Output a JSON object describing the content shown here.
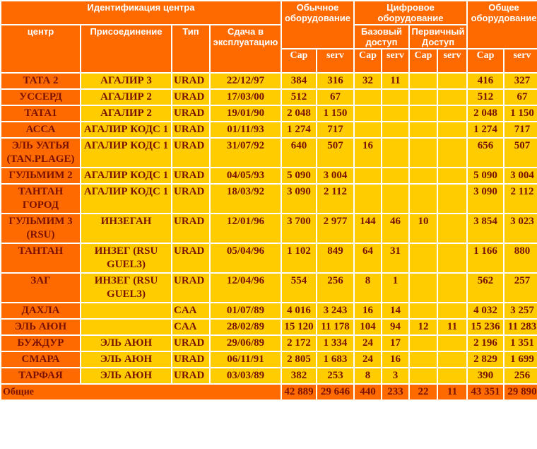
{
  "headers": {
    "id_group": "Идентификация центра",
    "col_center": "центр",
    "col_connection": "Присоединение",
    "col_type": "Тип",
    "col_commissioning": "Сдача в эксплуатацию",
    "ordinary_equipment": "Обычное оборудование",
    "digital_equipment": "Цифровое оборудование",
    "basic_access": "Базовый доступ",
    "primary_access": "Первичный Доступ",
    "total_equipment": "Общее оборудование",
    "cap": "Cap",
    "serv": "serv"
  },
  "rows": [
    {
      "center": "ТАТА 2",
      "connection": "АГАЛИР 3",
      "type": "URAD",
      "date": "22/12/97",
      "ord_cap": "384",
      "ord_serv": "316",
      "bas_cap": "32",
      "bas_serv": "11",
      "pri_cap": "",
      "pri_serv": "",
      "tot_cap": "416",
      "tot_serv": "327"
    },
    {
      "center": "УССЕРД",
      "connection": "АГАЛИР 2",
      "type": "URAD",
      "date": "17/03/00",
      "ord_cap": "512",
      "ord_serv": "67",
      "bas_cap": "",
      "bas_serv": "",
      "pri_cap": "",
      "pri_serv": "",
      "tot_cap": "512",
      "tot_serv": "67"
    },
    {
      "center": "ТАТА1",
      "connection": "АГАЛИР 2",
      "type": "URAD",
      "date": "19/01/90",
      "ord_cap": "2 048",
      "ord_serv": "1 150",
      "bas_cap": "",
      "bas_serv": "",
      "pri_cap": "",
      "pri_serv": "",
      "tot_cap": "2 048",
      "tot_serv": "1 150"
    },
    {
      "center": "АССА",
      "connection": "АГАЛИР КОДС 1",
      "type": "URAD",
      "date": "01/11/93",
      "ord_cap": "1 274",
      "ord_serv": "717",
      "bas_cap": "",
      "bas_serv": "",
      "pri_cap": "",
      "pri_serv": "",
      "tot_cap": "1 274",
      "tot_serv": "717"
    },
    {
      "center": "ЭЛЬ УАТЬЯ (TAN.PLAGE)",
      "connection": "АГАЛИР КОДС 1",
      "type": "URAD",
      "date": "31/07/92",
      "ord_cap": "640",
      "ord_serv": "507",
      "bas_cap": "16",
      "bas_serv": "",
      "pri_cap": "",
      "pri_serv": "",
      "tot_cap": "656",
      "tot_serv": "507"
    },
    {
      "center": "ГУЛЬМИМ 2",
      "connection": "АГАЛИР КОДС 1",
      "type": "URAD",
      "date": "04/05/93",
      "ord_cap": "5 090",
      "ord_serv": "3 004",
      "bas_cap": "",
      "bas_serv": "",
      "pri_cap": "",
      "pri_serv": "",
      "tot_cap": "5 090",
      "tot_serv": "3 004"
    },
    {
      "center": "ТАНТАН ГОРОД",
      "connection": "АГАЛИР КОДС 1",
      "type": "URAD",
      "date": "18/03/92",
      "ord_cap": "3 090",
      "ord_serv": "2 112",
      "bas_cap": "",
      "bas_serv": "",
      "pri_cap": "",
      "pri_serv": "",
      "tot_cap": "3 090",
      "tot_serv": "2 112"
    },
    {
      "center": "ГУЛЬМИМ 3 (RSU)",
      "connection": "ИНЗЕГАН",
      "type": "URAD",
      "date": "12/01/96",
      "ord_cap": "3 700",
      "ord_serv": "2 977",
      "bas_cap": "144",
      "bas_serv": "46",
      "pri_cap": "10",
      "pri_serv": "",
      "tot_cap": "3 854",
      "tot_serv": "3 023"
    },
    {
      "center": "ТАНТАН",
      "connection": "ИНЗЕГ (RSU GUEL3)",
      "type": "URAD",
      "date": "05/04/96",
      "ord_cap": "1 102",
      "ord_serv": "849",
      "bas_cap": "64",
      "bas_serv": "31",
      "pri_cap": "",
      "pri_serv": "",
      "tot_cap": "1 166",
      "tot_serv": "880"
    },
    {
      "center": "ЗАГ",
      "connection": "ИНЗЕГ (RSU GUEL3)",
      "type": "URAD",
      "date": "12/04/96",
      "ord_cap": "554",
      "ord_serv": "256",
      "bas_cap": "8",
      "bas_serv": "1",
      "pri_cap": "",
      "pri_serv": "",
      "tot_cap": "562",
      "tot_serv": "257"
    },
    {
      "center": "ДАХЛА",
      "connection": "",
      "type": "CAA",
      "date": "01/07/89",
      "ord_cap": "4 016",
      "ord_serv": "3 243",
      "bas_cap": "16",
      "bas_serv": "14",
      "pri_cap": "",
      "pri_serv": "",
      "tot_cap": "4 032",
      "tot_serv": "3 257"
    },
    {
      "center": "ЭЛЬ АЮН",
      "connection": "",
      "type": "CAA",
      "date": "28/02/89",
      "ord_cap": "15 120",
      "ord_serv": "11 178",
      "bas_cap": "104",
      "bas_serv": "94",
      "pri_cap": "12",
      "pri_serv": "11",
      "tot_cap": "15 236",
      "tot_serv": "11 283"
    },
    {
      "center": "БУЖДУР",
      "connection": "ЭЛЬ АЮН",
      "type": "URAD",
      "date": "29/06/89",
      "ord_cap": "2 172",
      "ord_serv": "1 334",
      "bas_cap": "24",
      "bas_serv": "17",
      "pri_cap": "",
      "pri_serv": "",
      "tot_cap": "2 196",
      "tot_serv": "1 351"
    },
    {
      "center": "СМАРА",
      "connection": "ЭЛЬ АЮН",
      "type": "URAD",
      "date": "06/11/91",
      "ord_cap": "2 805",
      "ord_serv": "1 683",
      "bas_cap": "24",
      "bas_serv": "16",
      "pri_cap": "",
      "pri_serv": "",
      "tot_cap": "2 829",
      "tot_serv": "1 699"
    },
    {
      "center": "ТАРФАЯ",
      "connection": "ЭЛЬ АЮН",
      "type": "URAD",
      "date": "03/03/89",
      "ord_cap": "382",
      "ord_serv": "253",
      "bas_cap": "8",
      "bas_serv": "3",
      "pri_cap": "",
      "pri_serv": "",
      "tot_cap": "390",
      "tot_serv": "256"
    }
  ],
  "totals": {
    "label": "Общие",
    "ord_cap": "42 889",
    "ord_serv": "29 646",
    "bas_cap": "440",
    "bas_serv": "233",
    "pri_cap": "22",
    "pri_serv": "11",
    "tot_cap": "43 351",
    "tot_serv": "29 890"
  },
  "colors": {
    "header_orange": "#ff6a00",
    "cell_yellow": "#ffcc00",
    "text_dark_red": "#7a1200",
    "header_text_white": "#ffffff"
  }
}
